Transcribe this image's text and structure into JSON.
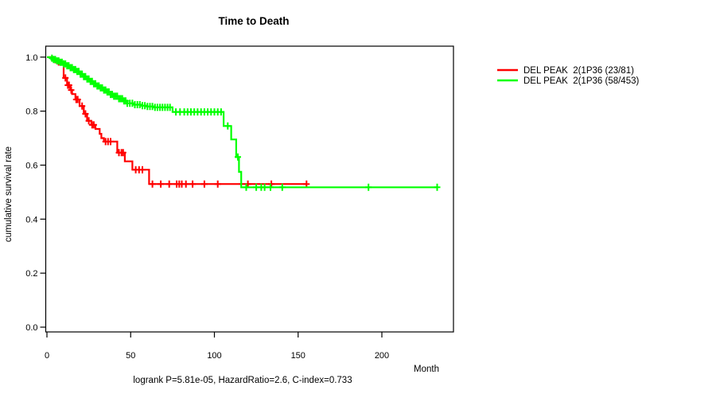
{
  "title": "Time to Death",
  "caption": "logrank P=5.81e-05, HazardRatio=2.6, C-index=0.733",
  "colors": {
    "group1": "#ff0000",
    "group2": "#00ff00",
    "axis": "#000000",
    "background": "#ffffff"
  },
  "legend": {
    "entries": [
      {
        "label": "DEL PEAK  2(1P36 (23/81)",
        "color": "#ff0000"
      },
      {
        "label": "DEL PEAK  2(1P36 (58/453)",
        "color": "#00ff00"
      }
    ]
  },
  "chart_data": {
    "type": "line",
    "subtype": "kaplan-meier-step-survival",
    "title": "Time to Death",
    "xlabel": "Month",
    "ylabel": "cumulative survival rate",
    "annotation": "logrank P=5.81e-05, HazardRatio=2.6, C-index=0.733",
    "xlim": [
      0,
      243
    ],
    "ylim": [
      0,
      1.04
    ],
    "x_ticks": [
      0,
      50,
      100,
      150,
      200
    ],
    "x_tick_labels": [
      "0",
      "50",
      "100",
      "150",
      "200"
    ],
    "y_ticks": [
      0.0,
      0.2,
      0.4,
      0.6,
      0.8,
      1.0
    ],
    "y_tick_labels": [
      "0.0",
      "0.2",
      "0.4",
      "0.6",
      "0.8",
      "1.0"
    ],
    "grid": false,
    "legend_position": "outside-top-right",
    "series": [
      {
        "name": "DEL PEAK  2(1P36 (23/81)",
        "color": "#ff0000",
        "events": "23/81",
        "end_time": 155,
        "steps": [
          [
            0,
            1.0
          ],
          [
            3,
            0.99
          ],
          [
            6,
            0.982
          ],
          [
            9.5,
            0.975
          ],
          [
            10,
            0.923
          ],
          [
            12,
            0.896
          ],
          [
            14,
            0.878
          ],
          [
            15,
            0.863
          ],
          [
            17,
            0.843
          ],
          [
            19.5,
            0.819
          ],
          [
            22,
            0.79
          ],
          [
            24,
            0.764
          ],
          [
            26.5,
            0.749
          ],
          [
            29,
            0.734
          ],
          [
            31.5,
            0.716
          ],
          [
            32.5,
            0.7
          ],
          [
            34,
            0.687
          ],
          [
            42,
            0.646
          ],
          [
            46.5,
            0.614
          ],
          [
            51,
            0.583
          ],
          [
            61,
            0.53
          ]
        ],
        "censor_times": [
          5,
          7,
          11,
          12.5,
          13.2,
          14.5,
          17.5,
          18.4,
          21,
          23,
          25,
          27,
          28,
          35,
          36.5,
          38,
          43,
          44.5,
          45.5,
          53,
          55,
          57,
          63,
          68,
          73,
          77.5,
          79,
          80.5,
          83,
          87,
          94,
          102,
          120,
          134,
          155
        ]
      },
      {
        "name": "DEL PEAK  2(1P36 (58/453)",
        "color": "#00ff00",
        "events": "58/453",
        "end_time": 233,
        "steps": [
          [
            0,
            1.0
          ],
          [
            2,
            0.996
          ],
          [
            4,
            0.991
          ],
          [
            6,
            0.986
          ],
          [
            8,
            0.981
          ],
          [
            10,
            0.975
          ],
          [
            12,
            0.968
          ],
          [
            14,
            0.961
          ],
          [
            16,
            0.954
          ],
          [
            18,
            0.947
          ],
          [
            20,
            0.937
          ],
          [
            22,
            0.928
          ],
          [
            24,
            0.919
          ],
          [
            26,
            0.91
          ],
          [
            28,
            0.901
          ],
          [
            30,
            0.893
          ],
          [
            32,
            0.886
          ],
          [
            34,
            0.878
          ],
          [
            36,
            0.871
          ],
          [
            38,
            0.862
          ],
          [
            40,
            0.855
          ],
          [
            43,
            0.846
          ],
          [
            46,
            0.838
          ],
          [
            48,
            0.829
          ],
          [
            52,
            0.824
          ],
          [
            56,
            0.82
          ],
          [
            60,
            0.817
          ],
          [
            64,
            0.814
          ],
          [
            75,
            0.797
          ],
          [
            105.5,
            0.745
          ],
          [
            110,
            0.695
          ],
          [
            113,
            0.63
          ],
          [
            114.7,
            0.575
          ],
          [
            116,
            0.518
          ]
        ],
        "censor_times": [
          3,
          4,
          5,
          6,
          7,
          8,
          9,
          10,
          11,
          12,
          13,
          14,
          15,
          16,
          17,
          18,
          19,
          20,
          21,
          22,
          23,
          24,
          25,
          26,
          27,
          28,
          29,
          30,
          31,
          32,
          33,
          34,
          35,
          36,
          37,
          38,
          39,
          40,
          41,
          42,
          43,
          44,
          45,
          46,
          47,
          48,
          49.5,
          51,
          52.5,
          54,
          55.5,
          57,
          58.5,
          60,
          61.5,
          63,
          64.5,
          66,
          67.5,
          69,
          70.5,
          72,
          73.5,
          77,
          79.5,
          82,
          84,
          86,
          88,
          90,
          92,
          94,
          96,
          98,
          100,
          102,
          104,
          108,
          114,
          119,
          125,
          128,
          130,
          133.5,
          140.5,
          192,
          233
        ]
      }
    ]
  }
}
